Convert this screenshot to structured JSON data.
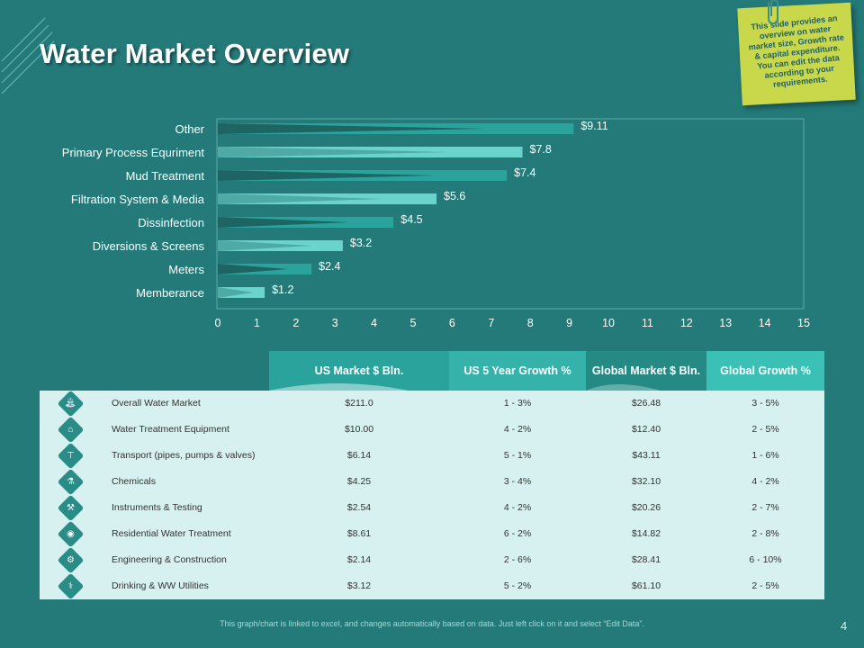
{
  "title": "Water Market Overview",
  "sticky_note": "This slide provides an overview on water market size, Growth rate & capital expenditure. You can edit the data according to your requirements.",
  "colors": {
    "background": "#237a79",
    "bar_dark": "#1d5d5c",
    "bar_mid": "#2aa39c",
    "bar_light": "#6ad3cc",
    "sticky": "#c8d84a",
    "table_body": "#d6f1ef",
    "header_teal": "#2aa39c"
  },
  "chart_data": {
    "type": "bar",
    "orientation": "horizontal",
    "categories": [
      "Other",
      "Primary Process Equriment",
      "Mud Treatment",
      "Filtration System & Media",
      "Dissinfection",
      "Diversions & Screens",
      "Meters",
      "Memberance"
    ],
    "values": [
      9.11,
      7.8,
      7.4,
      5.6,
      4.5,
      3.2,
      2.4,
      1.2
    ],
    "data_labels": [
      "$9.11",
      "$7.8",
      "$7.4",
      "$5.6",
      "$4.5",
      "$3.2",
      "$2.4",
      "$1.2"
    ],
    "xlim": [
      0,
      15
    ],
    "xticks": [
      "0",
      "1",
      "2",
      "3",
      "4",
      "5",
      "6",
      "7",
      "8",
      "9",
      "10",
      "11",
      "12",
      "13",
      "14",
      "15"
    ],
    "grid": false,
    "title": "",
    "xlabel": "",
    "ylabel": ""
  },
  "table": {
    "headers": [
      "US Market $ Bln.",
      "US 5 Year Growth %",
      "Global Market $ Bln.",
      "Global Growth %"
    ],
    "rows": [
      {
        "icon": "faucet-icon",
        "glyph": "⛲",
        "name": "Overall Water Market",
        "us_market": "$211.0",
        "us_growth": "1 - 3%",
        "global_market": "$26.48",
        "global_growth": "3 - 5%"
      },
      {
        "icon": "factory-icon",
        "glyph": "⌂",
        "name": "Water Treatment Equipment",
        "us_market": "$10.00",
        "us_growth": "4 - 2%",
        "global_market": "$12.40",
        "global_growth": "2 - 5%"
      },
      {
        "icon": "pipe-icon",
        "glyph": "⊤",
        "name": "Transport (pipes, pumps & valves)",
        "us_market": "$6.14",
        "us_growth": "5 - 1%",
        "global_market": "$43.11",
        "global_growth": "1 - 6%"
      },
      {
        "icon": "chemicals-icon",
        "glyph": "⚗",
        "name": "Chemicals",
        "us_market": "$4.25",
        "us_growth": "3 - 4%",
        "global_market": "$32.10",
        "global_growth": "4 - 2%"
      },
      {
        "icon": "tools-icon",
        "glyph": "⚒",
        "name": "Instruments & Testing",
        "us_market": "$2.54",
        "us_growth": "4 - 2%",
        "global_market": "$20.26",
        "global_growth": "2 - 7%"
      },
      {
        "icon": "water-drop-icon",
        "glyph": "◉",
        "name": "Residential Water Treatment",
        "us_market": "$8.61",
        "us_growth": "6 - 2%",
        "global_market": "$14.82",
        "global_growth": "2 - 8%"
      },
      {
        "icon": "engineering-icon",
        "glyph": "⚙",
        "name": "Engineering & Construction",
        "us_market": "$2.14",
        "us_growth": "2 - 6%",
        "global_market": "$28.41",
        "global_growth": "6 - 10%"
      },
      {
        "icon": "tap-icon",
        "glyph": "⚕",
        "name": "Drinking & WW Utilities",
        "us_market": "$3.12",
        "us_growth": "5 - 2%",
        "global_market": "$61.10",
        "global_growth": "2 - 5%"
      }
    ]
  },
  "footer": "This graph/chart is linked to excel, and changes automatically based on data. Just left click on it and select “Edit Data”.",
  "page_number": "4"
}
